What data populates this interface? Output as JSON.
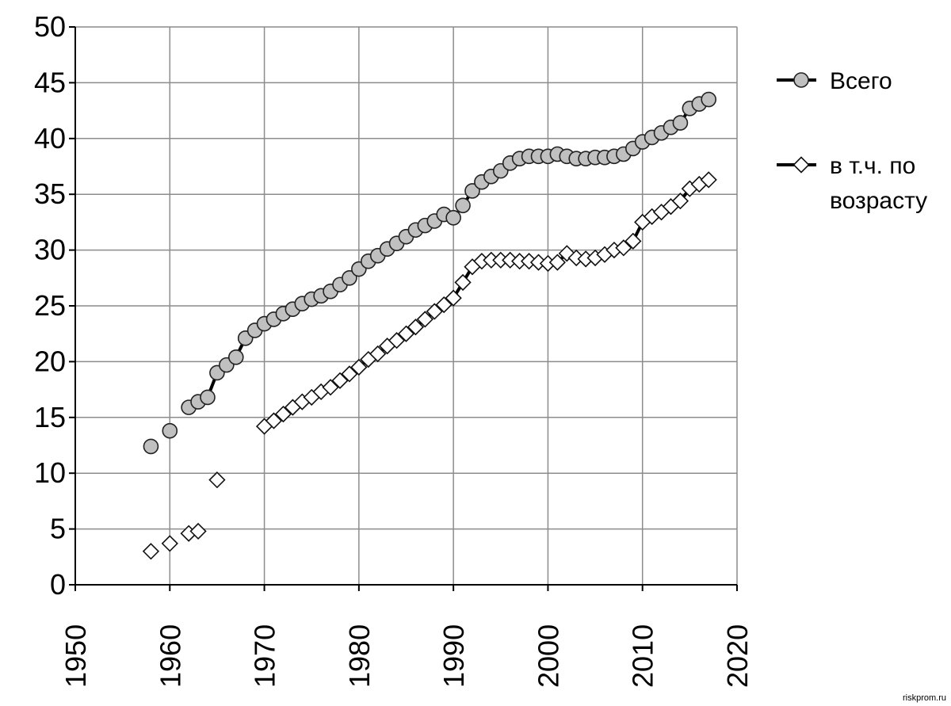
{
  "chart_data": {
    "type": "line",
    "xlim": [
      1950,
      2020
    ],
    "ylim": [
      0,
      50
    ],
    "x_ticks": [
      "1950",
      "1960",
      "1970",
      "1980",
      "1990",
      "2000",
      "2010",
      "2020"
    ],
    "y_ticks": [
      "0",
      "5",
      "10",
      "15",
      "20",
      "25",
      "30",
      "35",
      "40",
      "45",
      "50"
    ],
    "grid": true,
    "legend_position": "right",
    "series": [
      {
        "name": "Всего",
        "marker": "circle",
        "color": "#c0c0c0",
        "points": [
          [
            1958,
            12.4
          ],
          [
            1960,
            13.8
          ],
          [
            1962,
            15.9
          ],
          [
            1963,
            16.4
          ],
          [
            1964,
            16.8
          ],
          [
            1965,
            19.0
          ],
          [
            1966,
            19.7
          ],
          [
            1967,
            20.4
          ],
          [
            1968,
            22.1
          ],
          [
            1969,
            22.8
          ],
          [
            1970,
            23.4
          ],
          [
            1971,
            23.8
          ],
          [
            1972,
            24.3
          ],
          [
            1973,
            24.7
          ],
          [
            1974,
            25.2
          ],
          [
            1975,
            25.6
          ],
          [
            1976,
            25.9
          ],
          [
            1977,
            26.3
          ],
          [
            1978,
            26.9
          ],
          [
            1979,
            27.5
          ],
          [
            1980,
            28.3
          ],
          [
            1981,
            29.0
          ],
          [
            1982,
            29.5
          ],
          [
            1983,
            30.1
          ],
          [
            1984,
            30.6
          ],
          [
            1985,
            31.2
          ],
          [
            1986,
            31.8
          ],
          [
            1987,
            32.2
          ],
          [
            1988,
            32.6
          ],
          [
            1989,
            33.2
          ],
          [
            1990,
            32.9
          ],
          [
            1991,
            34.0
          ],
          [
            1992,
            35.3
          ],
          [
            1993,
            36.1
          ],
          [
            1994,
            36.6
          ],
          [
            1995,
            37.1
          ],
          [
            1996,
            37.8
          ],
          [
            1997,
            38.2
          ],
          [
            1998,
            38.4
          ],
          [
            1999,
            38.4
          ],
          [
            2000,
            38.4
          ],
          [
            2001,
            38.6
          ],
          [
            2002,
            38.4
          ],
          [
            2003,
            38.2
          ],
          [
            2004,
            38.2
          ],
          [
            2005,
            38.3
          ],
          [
            2006,
            38.3
          ],
          [
            2007,
            38.4
          ],
          [
            2008,
            38.6
          ],
          [
            2009,
            39.1
          ],
          [
            2010,
            39.7
          ],
          [
            2011,
            40.1
          ],
          [
            2012,
            40.5
          ],
          [
            2013,
            41.0
          ],
          [
            2014,
            41.4
          ],
          [
            2015,
            42.7
          ],
          [
            2016,
            43.1
          ],
          [
            2017,
            43.5
          ]
        ]
      },
      {
        "name": "в т.ч. по возрасту",
        "marker": "diamond",
        "color": "#ffffff",
        "points": [
          [
            1958,
            3.0
          ],
          [
            1960,
            3.7
          ],
          [
            1962,
            4.6
          ],
          [
            1963,
            4.8
          ],
          [
            1965,
            9.4
          ],
          [
            1970,
            14.2
          ],
          [
            1971,
            14.7
          ],
          [
            1972,
            15.3
          ],
          [
            1973,
            15.9
          ],
          [
            1974,
            16.4
          ],
          [
            1975,
            16.8
          ],
          [
            1976,
            17.3
          ],
          [
            1977,
            17.7
          ],
          [
            1978,
            18.3
          ],
          [
            1979,
            18.9
          ],
          [
            1980,
            19.5
          ],
          [
            1981,
            20.2
          ],
          [
            1982,
            20.7
          ],
          [
            1983,
            21.4
          ],
          [
            1984,
            21.9
          ],
          [
            1985,
            22.5
          ],
          [
            1986,
            23.1
          ],
          [
            1987,
            23.8
          ],
          [
            1988,
            24.5
          ],
          [
            1989,
            25.1
          ],
          [
            1990,
            25.7
          ],
          [
            1991,
            27.1
          ],
          [
            1992,
            28.5
          ],
          [
            1993,
            29.0
          ],
          [
            1994,
            29.1
          ],
          [
            1995,
            29.1
          ],
          [
            1996,
            29.1
          ],
          [
            1997,
            29.0
          ],
          [
            1998,
            29.0
          ],
          [
            1999,
            28.9
          ],
          [
            2000,
            28.8
          ],
          [
            2001,
            28.9
          ],
          [
            2002,
            29.7
          ],
          [
            2003,
            29.3
          ],
          [
            2004,
            29.2
          ],
          [
            2005,
            29.3
          ],
          [
            2006,
            29.6
          ],
          [
            2007,
            30.0
          ],
          [
            2008,
            30.2
          ],
          [
            2009,
            30.8
          ],
          [
            2010,
            32.5
          ],
          [
            2011,
            33.0
          ],
          [
            2012,
            33.4
          ],
          [
            2013,
            33.9
          ],
          [
            2014,
            34.4
          ],
          [
            2015,
            35.5
          ],
          [
            2016,
            35.9
          ],
          [
            2017,
            36.3
          ]
        ]
      }
    ],
    "legend": [
      {
        "series": 0,
        "lines": [
          "Всего"
        ]
      },
      {
        "series": 1,
        "lines": [
          "в т.ч. по",
          "возрасту"
        ]
      }
    ]
  },
  "watermark": "riskprom.ru"
}
